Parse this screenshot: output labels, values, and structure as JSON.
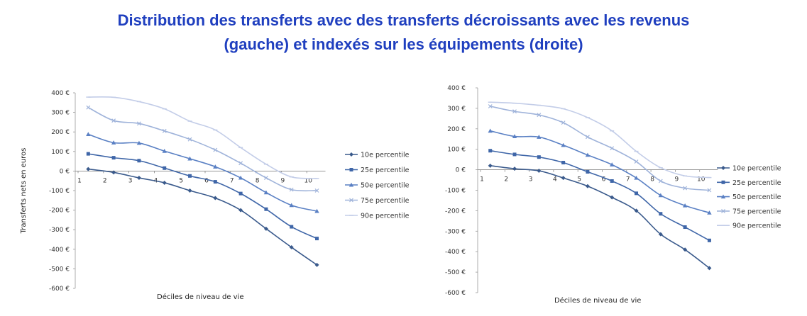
{
  "title_line1": "Distribution des transferts avec des transferts décroissants avec les revenus",
  "title_line2": "(gauche) et indexés sur les équipements (droite)",
  "colors": {
    "title": "#1f3fbf",
    "p10": "#3a5a8c",
    "p25": "#3f66a8",
    "p50": "#5a80c4",
    "p75": "#9fb3da",
    "p90": "#c3cde8"
  },
  "chart_data": [
    {
      "type": "line",
      "xlabel": "Déciles de niveau de vie",
      "ylabel": "Transferts nets en euros",
      "x": [
        1,
        2,
        3,
        4,
        5,
        6,
        7,
        8,
        9,
        10
      ],
      "ylim": [
        -600,
        400
      ],
      "yticks": [
        "400 €",
        "300 €",
        "200 €",
        "100 €",
        "0 €",
        "-100 €",
        "-200 €",
        "-300 €",
        "-400 €",
        "-500 €",
        "-600 €"
      ],
      "legend_position": "right",
      "series": [
        {
          "name": "10e percentile",
          "values": [
            10,
            -7,
            -35,
            -60,
            -100,
            -138,
            -200,
            -295,
            -390,
            -480
          ]
        },
        {
          "name": "25e percentile",
          "values": [
            88,
            68,
            53,
            15,
            -25,
            -55,
            -115,
            -195,
            -285,
            -345
          ]
        },
        {
          "name": "50e percentile",
          "values": [
            188,
            145,
            143,
            102,
            63,
            22,
            -35,
            -110,
            -175,
            -205
          ]
        },
        {
          "name": "75e percentile",
          "values": [
            325,
            258,
            243,
            205,
            162,
            108,
            40,
            -35,
            -95,
            -100
          ]
        },
        {
          "name": "90e percentile",
          "values": [
            378,
            377,
            355,
            318,
            255,
            210,
            120,
            35,
            -30,
            -38
          ]
        }
      ]
    },
    {
      "type": "line",
      "xlabel": "Déciles de niveau de vie",
      "ylabel": "",
      "x": [
        1,
        2,
        3,
        4,
        5,
        6,
        7,
        8,
        9,
        10
      ],
      "ylim": [
        -600,
        400
      ],
      "yticks": [
        "400 €",
        "300 €",
        "200 €",
        "100 €",
        "0 €",
        "-100 €",
        "-200 €",
        "-300 €",
        "-400 €",
        "-500 €",
        "-600 €"
      ],
      "legend_position": "right",
      "series": [
        {
          "name": "10e percentile",
          "values": [
            20,
            5,
            -5,
            -40,
            -80,
            -135,
            -200,
            -315,
            -390,
            -480
          ]
        },
        {
          "name": "25e percentile",
          "values": [
            93,
            75,
            62,
            35,
            -10,
            -55,
            -115,
            -215,
            -280,
            -345
          ]
        },
        {
          "name": "50e percentile",
          "values": [
            190,
            163,
            160,
            120,
            72,
            25,
            -40,
            -125,
            -175,
            -210
          ]
        },
        {
          "name": "75e percentile",
          "values": [
            310,
            285,
            268,
            230,
            160,
            105,
            40,
            -55,
            -90,
            -100
          ]
        },
        {
          "name": "90e percentile",
          "values": [
            330,
            325,
            315,
            298,
            255,
            190,
            90,
            10,
            -30,
            -38
          ]
        }
      ]
    }
  ]
}
